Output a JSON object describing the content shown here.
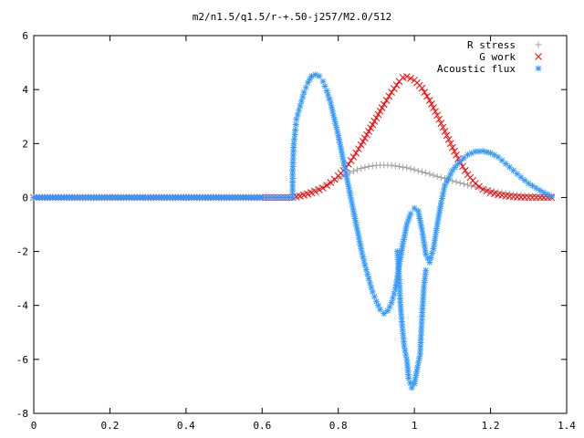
{
  "chart_data": {
    "type": "scatter",
    "title": "m2/n1.5/q1.5/r-+.50-j257/M2.0/512",
    "xlabel": "",
    "ylabel": "",
    "xlim": [
      0,
      1.4
    ],
    "ylim": [
      -8,
      6
    ],
    "xticks": [
      "0",
      "0.2",
      "0.4",
      "0.6",
      "0.8",
      "1",
      "1.2",
      "1.4"
    ],
    "yticks": [
      "-8",
      "-6",
      "-4",
      "-2",
      "0",
      "2",
      "4",
      "6"
    ],
    "legend_position": "top-right",
    "grid": false,
    "series": [
      {
        "name": "R stress",
        "marker": "+",
        "color": "#a0a0a0",
        "points": [
          [
            0.0,
            0
          ],
          [
            0.1,
            0
          ],
          [
            0.2,
            0
          ],
          [
            0.3,
            0
          ],
          [
            0.4,
            0
          ],
          [
            0.5,
            0
          ],
          [
            0.6,
            0
          ],
          [
            0.68,
            0
          ],
          [
            0.7,
            0.1
          ],
          [
            0.72,
            0.2
          ],
          [
            0.74,
            0.3
          ],
          [
            0.76,
            0.4
          ],
          [
            0.78,
            0.55
          ],
          [
            0.8,
            0.7
          ],
          [
            0.82,
            0.85
          ],
          [
            0.84,
            0.98
          ],
          [
            0.86,
            1.08
          ],
          [
            0.88,
            1.15
          ],
          [
            0.9,
            1.19
          ],
          [
            0.92,
            1.2
          ],
          [
            0.94,
            1.19
          ],
          [
            0.96,
            1.15
          ],
          [
            0.98,
            1.1
          ],
          [
            1.0,
            1.03
          ],
          [
            1.02,
            0.95
          ],
          [
            1.04,
            0.87
          ],
          [
            1.06,
            0.78
          ],
          [
            1.08,
            0.7
          ],
          [
            1.1,
            0.62
          ],
          [
            1.12,
            0.54
          ],
          [
            1.14,
            0.46
          ],
          [
            1.16,
            0.39
          ],
          [
            1.18,
            0.32
          ],
          [
            1.2,
            0.26
          ],
          [
            1.22,
            0.21
          ],
          [
            1.24,
            0.16
          ],
          [
            1.26,
            0.12
          ],
          [
            1.28,
            0.09
          ],
          [
            1.3,
            0.06
          ],
          [
            1.32,
            0.04
          ],
          [
            1.34,
            0.02
          ],
          [
            1.36,
            0.01
          ]
        ]
      },
      {
        "name": "G work",
        "marker": "x",
        "color": "#ff0000",
        "points": [
          [
            0.0,
            0
          ],
          [
            0.1,
            0
          ],
          [
            0.2,
            0
          ],
          [
            0.3,
            0
          ],
          [
            0.4,
            0
          ],
          [
            0.5,
            0
          ],
          [
            0.6,
            0
          ],
          [
            0.68,
            0
          ],
          [
            0.7,
            0.05
          ],
          [
            0.72,
            0.12
          ],
          [
            0.74,
            0.22
          ],
          [
            0.76,
            0.35
          ],
          [
            0.78,
            0.55
          ],
          [
            0.8,
            0.8
          ],
          [
            0.82,
            1.1
          ],
          [
            0.84,
            1.5
          ],
          [
            0.86,
            1.95
          ],
          [
            0.88,
            2.45
          ],
          [
            0.9,
            2.95
          ],
          [
            0.92,
            3.45
          ],
          [
            0.94,
            3.9
          ],
          [
            0.96,
            4.3
          ],
          [
            0.97,
            4.45
          ],
          [
            0.98,
            4.48
          ],
          [
            1.0,
            4.35
          ],
          [
            1.02,
            4.05
          ],
          [
            1.04,
            3.6
          ],
          [
            1.06,
            3.05
          ],
          [
            1.08,
            2.45
          ],
          [
            1.1,
            1.85
          ],
          [
            1.12,
            1.3
          ],
          [
            1.14,
            0.85
          ],
          [
            1.16,
            0.52
          ],
          [
            1.18,
            0.3
          ],
          [
            1.2,
            0.18
          ],
          [
            1.22,
            0.1
          ],
          [
            1.24,
            0.06
          ],
          [
            1.26,
            0.03
          ],
          [
            1.28,
            0.01
          ],
          [
            1.3,
            0
          ],
          [
            1.32,
            0
          ],
          [
            1.34,
            0
          ],
          [
            1.36,
            0
          ]
        ]
      },
      {
        "name": "Acoustic flux",
        "marker": "*",
        "color": "#3399ff",
        "points": [
          [
            0.0,
            0
          ],
          [
            0.1,
            0
          ],
          [
            0.2,
            0
          ],
          [
            0.3,
            0
          ],
          [
            0.4,
            0
          ],
          [
            0.5,
            0
          ],
          [
            0.6,
            0
          ],
          [
            0.68,
            0
          ],
          [
            0.68,
            1.0
          ],
          [
            0.683,
            2.0
          ],
          [
            0.687,
            2.5
          ],
          [
            0.69,
            2.9
          ],
          [
            0.7,
            3.4
          ],
          [
            0.71,
            3.9
          ],
          [
            0.72,
            4.25
          ],
          [
            0.73,
            4.5
          ],
          [
            0.74,
            4.55
          ],
          [
            0.75,
            4.5
          ],
          [
            0.76,
            4.3
          ],
          [
            0.77,
            3.95
          ],
          [
            0.78,
            3.5
          ],
          [
            0.79,
            2.9
          ],
          [
            0.8,
            2.3
          ],
          [
            0.81,
            1.6
          ],
          [
            0.82,
            0.9
          ],
          [
            0.83,
            0.2
          ],
          [
            0.84,
            -0.5
          ],
          [
            0.85,
            -1.2
          ],
          [
            0.86,
            -1.9
          ],
          [
            0.87,
            -2.5
          ],
          [
            0.88,
            -3.0
          ],
          [
            0.89,
            -3.5
          ],
          [
            0.9,
            -3.85
          ],
          [
            0.91,
            -4.15
          ],
          [
            0.92,
            -4.3
          ],
          [
            0.93,
            -4.2
          ],
          [
            0.94,
            -3.9
          ],
          [
            0.95,
            -3.4
          ],
          [
            0.96,
            -2.5
          ],
          [
            0.97,
            -1.7
          ],
          [
            0.98,
            -1.0
          ],
          [
            0.99,
            -0.6
          ],
          [
            1.0,
            -0.4
          ],
          [
            1.01,
            -0.5
          ],
          [
            1.02,
            -1.2
          ],
          [
            1.03,
            -2.1
          ],
          [
            1.04,
            -2.4
          ],
          [
            1.05,
            -1.9
          ],
          [
            1.06,
            -1.0
          ],
          [
            1.07,
            -0.2
          ],
          [
            1.08,
            0.45
          ],
          [
            1.1,
            1.0
          ],
          [
            1.12,
            1.35
          ],
          [
            1.14,
            1.58
          ],
          [
            1.16,
            1.7
          ],
          [
            1.18,
            1.72
          ],
          [
            1.2,
            1.65
          ],
          [
            1.22,
            1.5
          ],
          [
            1.24,
            1.25
          ],
          [
            1.26,
            1.0
          ],
          [
            1.28,
            0.75
          ],
          [
            1.3,
            0.52
          ],
          [
            1.32,
            0.35
          ],
          [
            1.34,
            0.18
          ],
          [
            1.36,
            0.05
          ],
          [
            0.955,
            -2.0
          ],
          [
            0.96,
            -2.9
          ],
          [
            0.963,
            -3.9
          ],
          [
            0.967,
            -4.6
          ],
          [
            0.973,
            -5.5
          ],
          [
            0.98,
            -6.0
          ],
          [
            0.985,
            -6.7
          ],
          [
            0.993,
            -7.05
          ],
          [
            1.0,
            -6.9
          ],
          [
            1.008,
            -6.3
          ],
          [
            1.015,
            -5.8
          ],
          [
            1.02,
            -4.4
          ],
          [
            1.025,
            -3.3
          ],
          [
            1.03,
            -2.7
          ]
        ]
      }
    ]
  }
}
